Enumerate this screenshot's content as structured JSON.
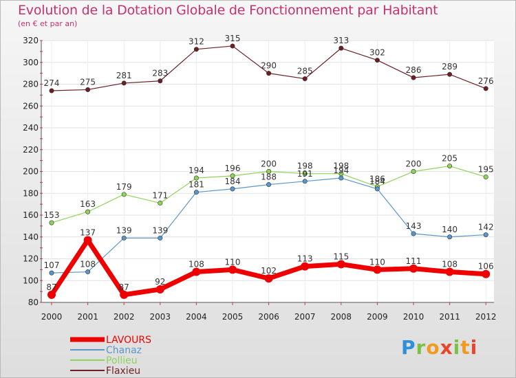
{
  "chart_data": {
    "type": "line",
    "title": "Evolution de la Dotation Globale de Fonctionnement par Habitant",
    "subtitle": "(en € et par an)",
    "xlabel": "",
    "ylabel": "",
    "ylim": [
      80,
      320
    ],
    "yticks": [
      80,
      100,
      120,
      140,
      160,
      180,
      200,
      220,
      240,
      260,
      280,
      300,
      320
    ],
    "grid": true,
    "categories": [
      "2000",
      "2001",
      "2002",
      "2003",
      "2004",
      "2005",
      "2006",
      "2007",
      "2008",
      "2009",
      "2010",
      "2011",
      "2012"
    ],
    "series": [
      {
        "name": "Flaxieu",
        "color": "#6b1f24",
        "values": [
          274,
          275,
          281,
          283,
          312,
          315,
          290,
          285,
          313,
          302,
          286,
          289,
          276
        ]
      },
      {
        "name": "Pollieu",
        "color": "#8fd45a",
        "values": [
          153,
          163,
          179,
          171,
          194,
          196,
          200,
          198,
          198,
          186,
          200,
          205,
          195
        ]
      },
      {
        "name": "Chanaz",
        "color": "#5a96c8",
        "values": [
          107,
          108,
          139,
          139,
          181,
          184,
          188,
          191,
          194,
          184,
          143,
          140,
          142
        ]
      },
      {
        "name": "LAVOURS",
        "color": "#ee0000",
        "values": [
          87,
          137,
          87,
          92,
          108,
          110,
          102,
          113,
          115,
          110,
          111,
          108,
          106
        ]
      }
    ],
    "legend": [
      "LAVOURS",
      "Chanaz",
      "Pollieu",
      "Flaxieu"
    ],
    "legend_position": "bottom-left"
  },
  "logo": {
    "letters": [
      "P",
      "r",
      "o",
      "x",
      "i",
      "t",
      "i"
    ]
  }
}
